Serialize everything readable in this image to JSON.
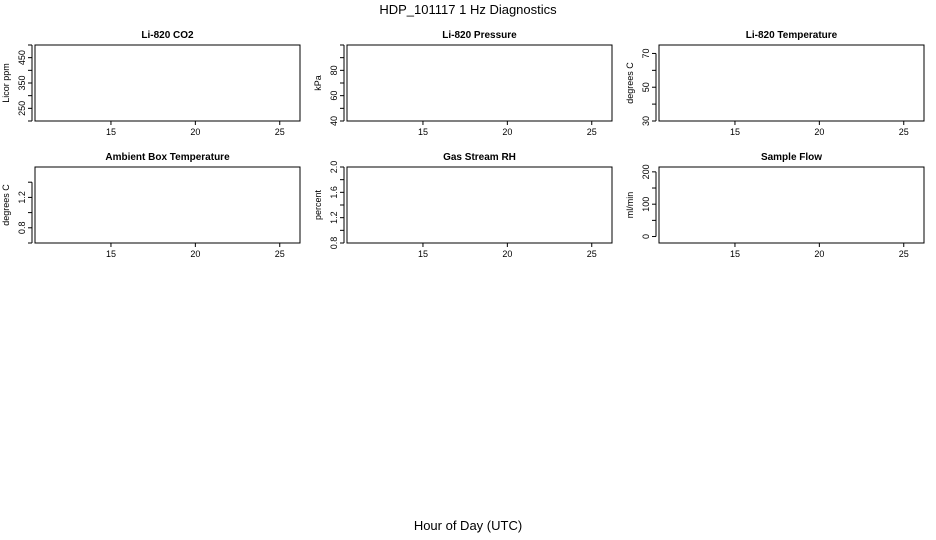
{
  "title": "HDP_101117  1 Hz Diagnostics",
  "xlabel": "Hour of Day (UTC)",
  "chart_data": [
    {
      "type": "line",
      "title": "Li-820 CO2",
      "ylabel": "Licor ppm",
      "xlim": [
        10.5,
        26.2
      ],
      "ylim": [
        200,
        500
      ],
      "xticks": [
        "15",
        "20",
        "25"
      ],
      "yticks": [
        "250",
        "350",
        "450"
      ],
      "yminor": [
        200,
        300,
        400,
        500
      ],
      "series": []
    },
    {
      "type": "line",
      "title": "Li-820 Pressure",
      "ylabel": "kPa",
      "xlim": [
        10.5,
        26.2
      ],
      "ylim": [
        40,
        100
      ],
      "xticks": [
        "15",
        "20",
        "25"
      ],
      "yticks": [
        "40",
        "60",
        "80"
      ],
      "yminor": [
        50,
        70,
        90,
        100
      ],
      "series": []
    },
    {
      "type": "line",
      "title": "Li-820 Temperature",
      "ylabel": "degrees C",
      "xlim": [
        10.5,
        26.2
      ],
      "ylim": [
        30,
        75
      ],
      "xticks": [
        "15",
        "20",
        "25"
      ],
      "yticks": [
        "30",
        "50",
        "70"
      ],
      "yminor": [
        40,
        60
      ],
      "series": []
    },
    {
      "type": "line",
      "title": "Ambient Box Temperature",
      "ylabel": "degrees C",
      "xlim": [
        10.5,
        26.2
      ],
      "ylim": [
        0.6,
        1.6
      ],
      "xticks": [
        "15",
        "20",
        "25"
      ],
      "yticks": [
        "0.8",
        "1.2"
      ],
      "yminor": [
        0.6,
        1.0,
        1.4
      ],
      "series": []
    },
    {
      "type": "line",
      "title": "Gas Stream RH",
      "ylabel": "percent",
      "xlim": [
        10.5,
        26.2
      ],
      "ylim": [
        0.8,
        2.0
      ],
      "xticks": [
        "15",
        "20",
        "25"
      ],
      "yticks": [
        "0.8",
        "1.2",
        "1.6",
        "2.0"
      ],
      "yminor": [
        1.0,
        1.4,
        1.8
      ],
      "series": []
    },
    {
      "type": "line",
      "title": "Sample Flow",
      "ylabel": "ml/min",
      "xlim": [
        10.5,
        26.2
      ],
      "ylim": [
        -20,
        215
      ],
      "xticks": [
        "15",
        "20",
        "25"
      ],
      "yticks": [
        "0",
        "100",
        "200"
      ],
      "yminor": [
        50,
        150
      ],
      "series": []
    }
  ]
}
